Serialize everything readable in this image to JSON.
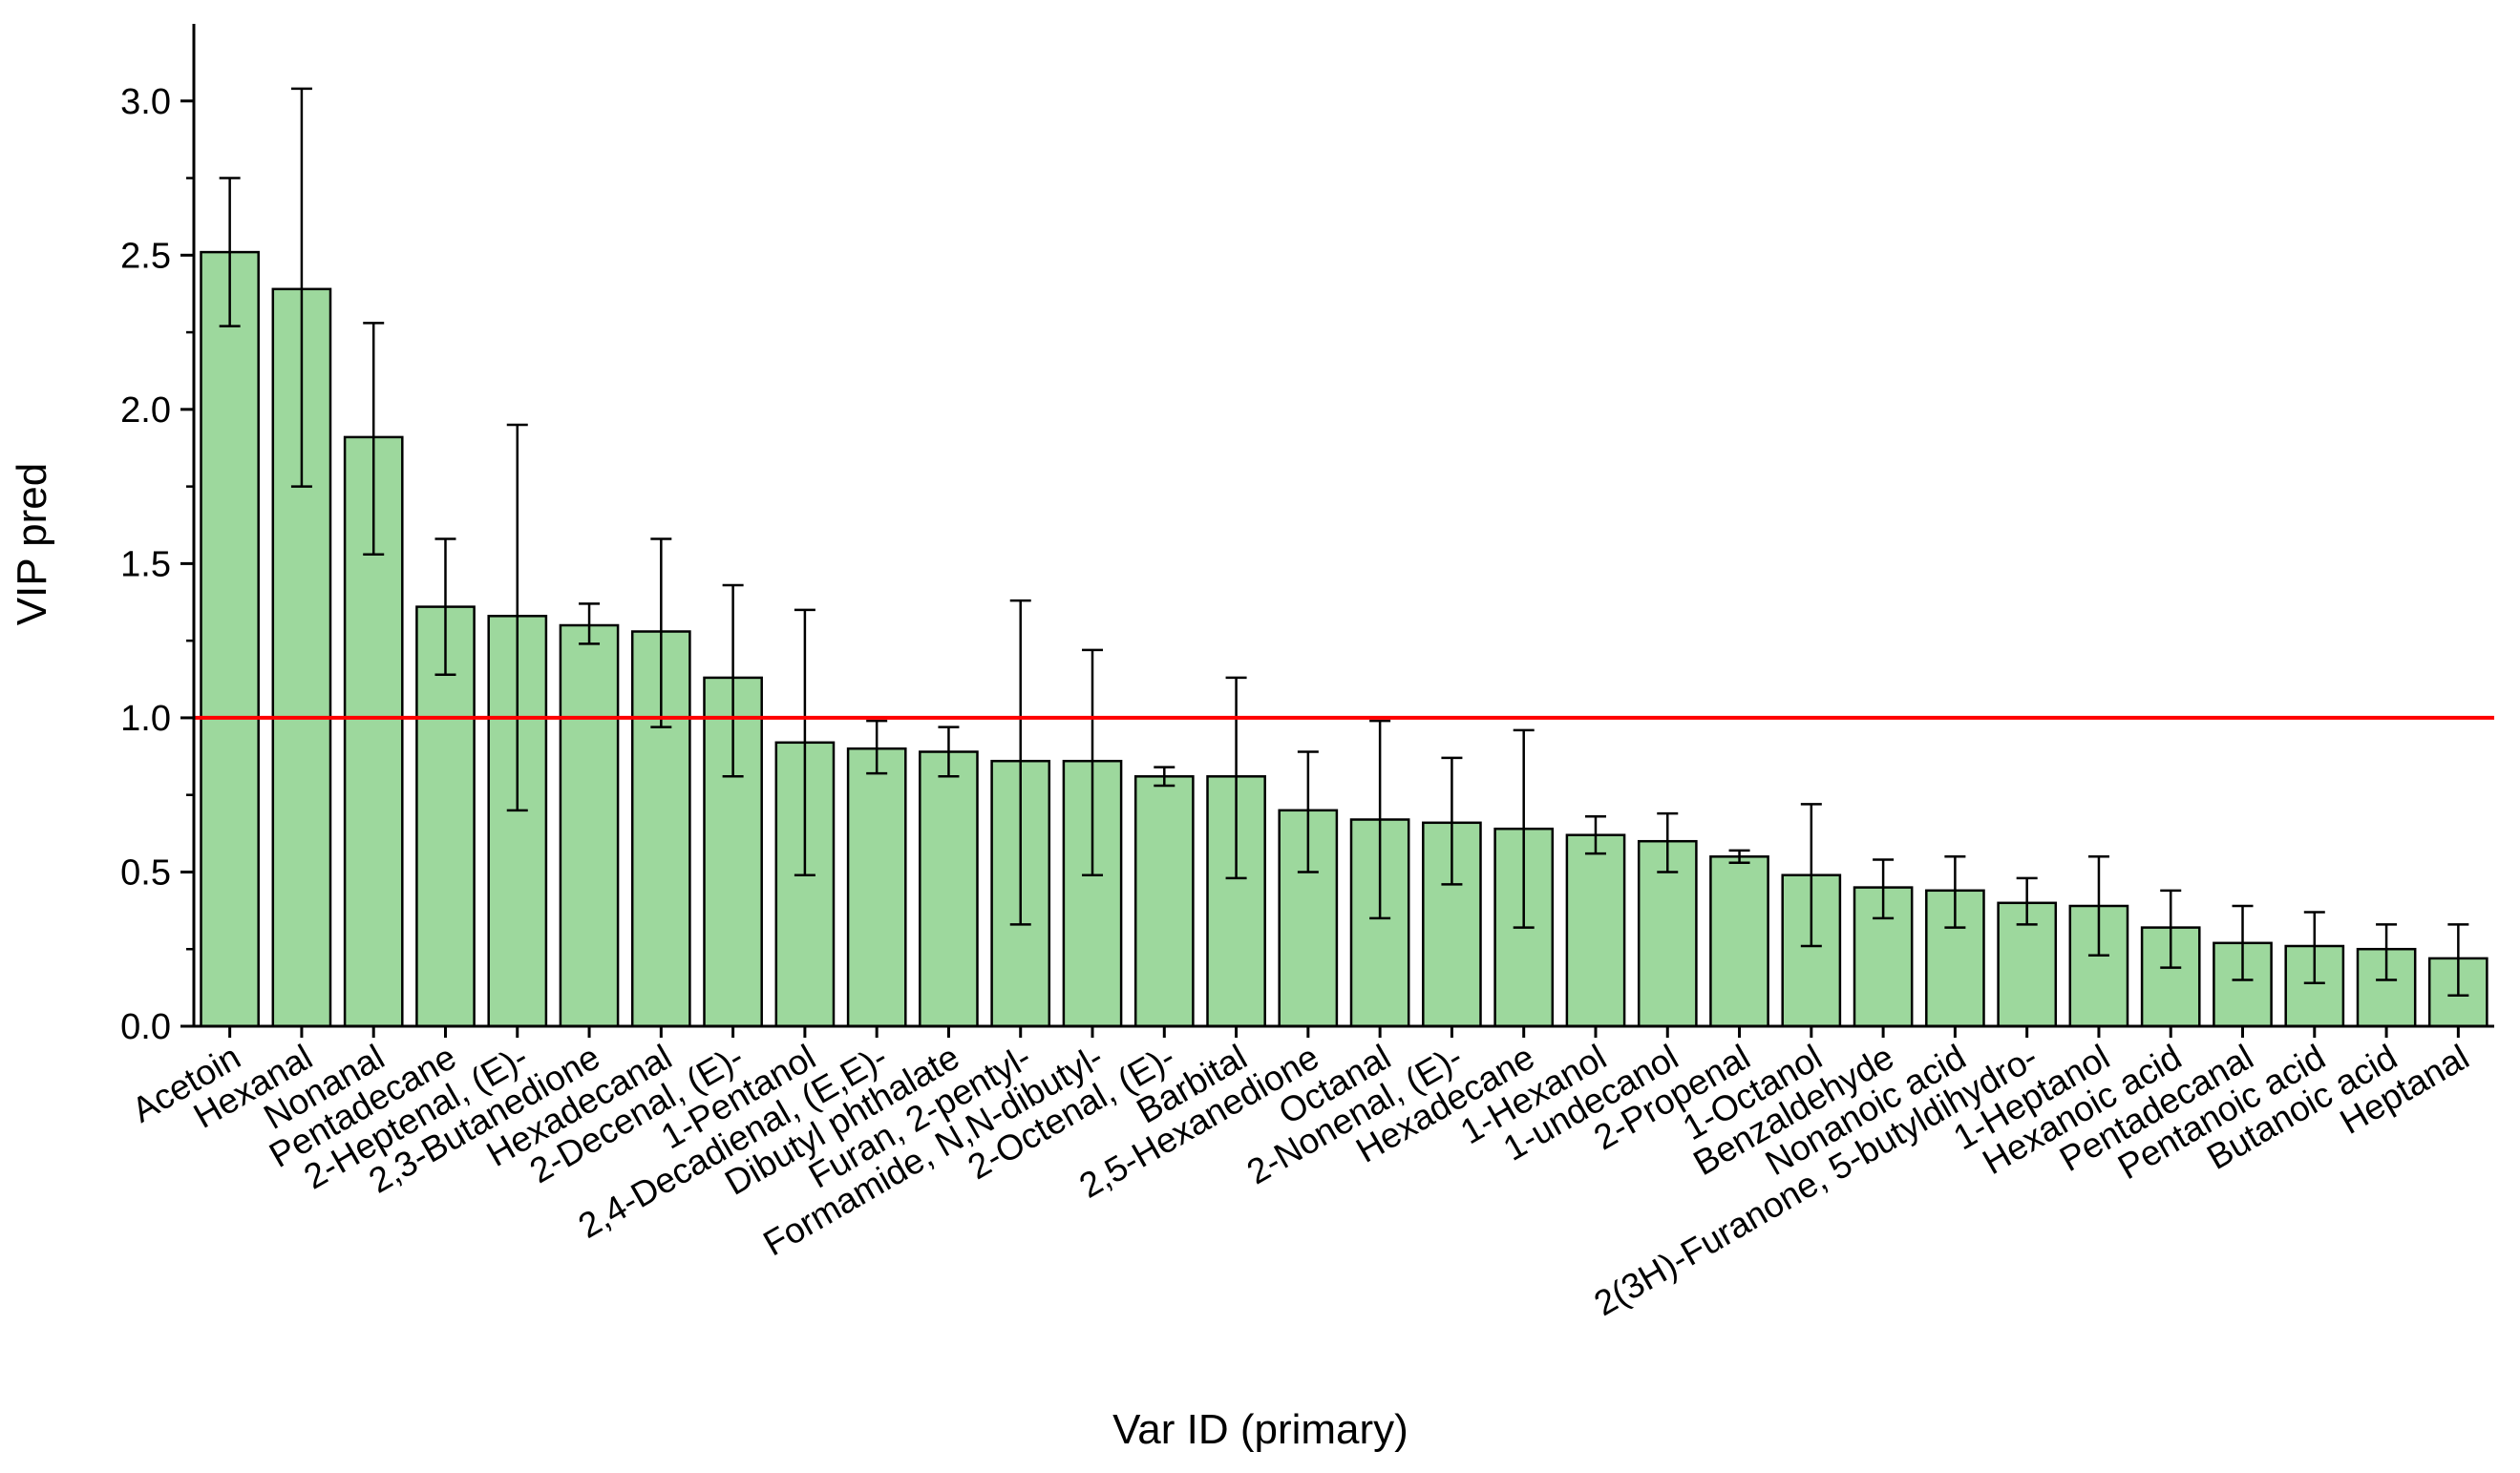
{
  "chart_data": {
    "type": "bar",
    "title": "",
    "xlabel": "Var ID (primary)",
    "ylabel": "VIP pred",
    "ylim": [
      0,
      3.25
    ],
    "yticks": [
      0.0,
      0.5,
      1.0,
      1.5,
      2.0,
      2.5,
      3.0
    ],
    "ytick_labels": [
      "0.0",
      "0.5",
      "1.0",
      "1.5",
      "2.0",
      "2.5",
      "3.0"
    ],
    "grid": false,
    "legend": "none",
    "threshold": {
      "value": 1.0,
      "color": "#ff0000"
    },
    "bar_color": "#9dd89d",
    "categories": [
      "Acetoin",
      "Hexanal",
      "Nonanal",
      "Pentadecane",
      "2-Heptenal, (E)-",
      "2,3-Butanedione",
      "Hexadecanal",
      "2-Decenal, (E)-",
      "1-Pentanol",
      "2,4-Decadienal, (E,E)-",
      "Dibutyl phthalate",
      "Furan, 2-pentyl-",
      "Formamide, N,N-dibutyl-",
      "2-Octenal, (E)-",
      "Barbital",
      "2,5-Hexanedione",
      "Octanal",
      "2-Nonenal, (E)-",
      "Hexadecane",
      "1-Hexanol",
      "1-undecanol",
      "2-Propenal",
      "1-Octanol",
      "Benzaldehyde",
      "Nonanoic acid",
      "2(3H)-Furanone, 5-butyldihydro-",
      "1-Heptanol",
      "Hexanoic acid",
      "Pentadecanal",
      "Pentanoic acid",
      "Butanoic acid",
      "Heptanal"
    ],
    "values": [
      2.51,
      2.39,
      1.91,
      1.36,
      1.33,
      1.3,
      1.28,
      1.13,
      0.92,
      0.9,
      0.89,
      0.86,
      0.86,
      0.81,
      0.81,
      0.7,
      0.67,
      0.66,
      0.64,
      0.62,
      0.6,
      0.55,
      0.49,
      0.45,
      0.44,
      0.4,
      0.39,
      0.32,
      0.27,
      0.26,
      0.25,
      0.22
    ],
    "error_low": [
      2.27,
      1.75,
      1.53,
      1.14,
      0.7,
      1.24,
      0.97,
      0.81,
      0.49,
      0.82,
      0.81,
      0.33,
      0.49,
      0.78,
      0.48,
      0.5,
      0.35,
      0.46,
      0.32,
      0.56,
      0.5,
      0.53,
      0.26,
      0.35,
      0.32,
      0.33,
      0.23,
      0.19,
      0.15,
      0.14,
      0.15,
      0.1
    ],
    "error_high": [
      2.75,
      3.04,
      2.28,
      1.58,
      1.95,
      1.37,
      1.58,
      1.43,
      1.35,
      0.99,
      0.97,
      1.38,
      1.22,
      0.84,
      1.13,
      0.89,
      0.99,
      0.87,
      0.96,
      0.68,
      0.69,
      0.57,
      0.72,
      0.54,
      0.55,
      0.48,
      0.55,
      0.44,
      0.39,
      0.37,
      0.33,
      0.33
    ]
  }
}
